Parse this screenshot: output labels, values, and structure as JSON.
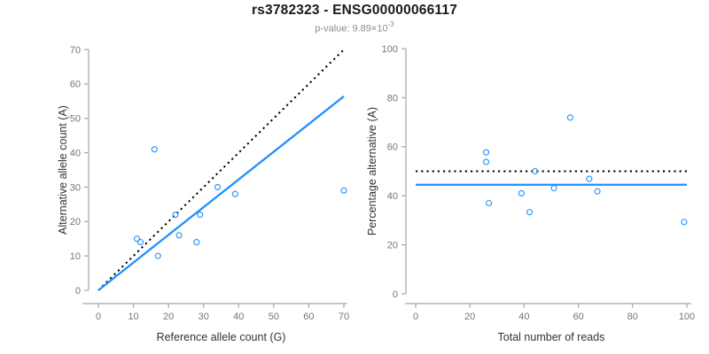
{
  "header": {
    "title": "rs3782323 - ENSG00000066117",
    "subtitle_base": "p-value: 9.89×10",
    "subtitle_exponent": "-3"
  },
  "colors": {
    "accent_blue": "#1E90FF",
    "line_black": "#000000",
    "axis_line": "#A6A6A6",
    "tick_text": "#757575",
    "axis_title_text": "#333333",
    "title_text": "#1A1A1A",
    "subtitle_text": "#8C8C8C",
    "background": "#FFFFFF"
  },
  "chart_data": [
    {
      "type": "scatter",
      "name": "allele-counts-plot",
      "xlabel": "Reference allele count (G)",
      "ylabel": "Alternative allele count (A)",
      "xlim": [
        0,
        70
      ],
      "ylim": [
        0,
        70
      ],
      "xticks": [
        0,
        10,
        20,
        30,
        40,
        50,
        60,
        70
      ],
      "yticks": [
        0,
        10,
        20,
        30,
        40,
        50,
        60,
        70
      ],
      "grid": false,
      "marker": "open-circle",
      "points": [
        [
          11,
          15
        ],
        [
          12,
          14
        ],
        [
          16,
          41
        ],
        [
          17,
          10
        ],
        [
          22,
          22
        ],
        [
          23,
          16
        ],
        [
          28,
          14
        ],
        [
          29,
          22
        ],
        [
          34,
          30
        ],
        [
          39,
          28
        ],
        [
          70,
          29
        ]
      ],
      "lines": [
        {
          "name": "identity-line",
          "style": "dotted",
          "color_key": "line_black",
          "from": [
            0,
            0
          ],
          "to": [
            70,
            70
          ]
        },
        {
          "name": "regression-line",
          "style": "solid",
          "color_key": "accent_blue",
          "from": [
            0,
            0
          ],
          "to": [
            70,
            56.4
          ]
        }
      ]
    },
    {
      "type": "scatter",
      "name": "percentage-alternative-plot",
      "xlabel": "Total number of reads",
      "ylabel": "Percentage alternative (A)",
      "xlim": [
        0,
        100
      ],
      "ylim": [
        0,
        100
      ],
      "xticks": [
        0,
        20,
        40,
        60,
        80,
        100
      ],
      "yticks": [
        0,
        20,
        40,
        60,
        80,
        100
      ],
      "grid": false,
      "marker": "open-circle",
      "points": [
        [
          26,
          57.7
        ],
        [
          26,
          53.8
        ],
        [
          27,
          37
        ],
        [
          39,
          41
        ],
        [
          42,
          33.3
        ],
        [
          44,
          50
        ],
        [
          51,
          43.1
        ],
        [
          57,
          71.9
        ],
        [
          64,
          46.9
        ],
        [
          67,
          41.8
        ],
        [
          99,
          29.3
        ]
      ],
      "lines": [
        {
          "name": "expected-50pct-line",
          "style": "dotted",
          "color_key": "line_black",
          "from": [
            0,
            50
          ],
          "to": [
            100,
            50
          ]
        },
        {
          "name": "mean-percentage-line",
          "style": "solid",
          "color_key": "accent_blue",
          "from": [
            0,
            44.5
          ],
          "to": [
            100,
            44.5
          ]
        }
      ]
    }
  ]
}
